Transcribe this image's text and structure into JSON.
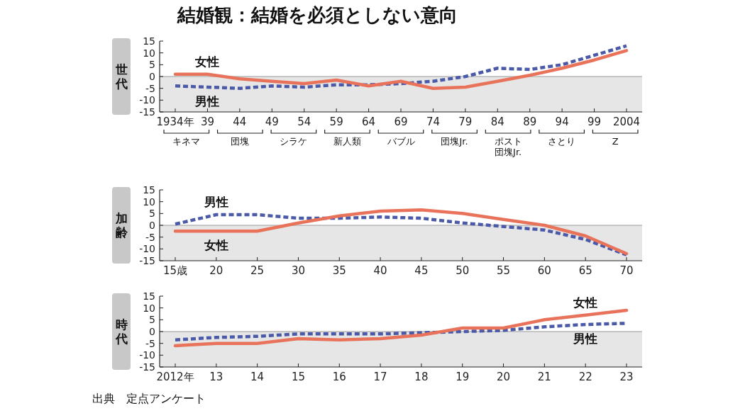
{
  "chart_data": [
    {
      "type": "line",
      "title": "結婚観：結婚を必須としない意向",
      "ylabel": "世代",
      "categories": [
        "1934年",
        "39",
        "44",
        "49",
        "54",
        "59",
        "64",
        "69",
        "74",
        "79",
        "84",
        "89",
        "94",
        "99",
        "2004"
      ],
      "ylim": [
        -15,
        15
      ],
      "yticks": [
        15,
        10,
        5,
        0,
        -5,
        -10,
        -15
      ],
      "legend": false,
      "series": [
        {
          "name": "男性",
          "color": "#4a5aa8",
          "line_style": "dashed",
          "values": [
            -4,
            -4.5,
            -5,
            -4,
            -4.5,
            -3.5,
            -3.5,
            -3,
            -2,
            0,
            3.5,
            3,
            5,
            9,
            13
          ]
        },
        {
          "name": "女性",
          "color": "#e8735a",
          "line_style": "solid",
          "values": [
            1,
            1,
            -1,
            -2,
            -3,
            -1.5,
            -4,
            -2,
            -5,
            -4.5,
            -2,
            0.5,
            3.5,
            7,
            11
          ]
        }
      ],
      "bands": [
        {
          "axis": "y",
          "from": -15,
          "to": 0,
          "color": "#e6e6e6"
        }
      ],
      "annotations": [
        "キネマ",
        "団塊",
        "シラケ",
        "新人類",
        "バブル",
        "団塊Jr.",
        "ポスト団塊Jr.",
        "さとり",
        "Z"
      ]
    },
    {
      "type": "line",
      "ylabel": "加齢",
      "categories": [
        "15歳",
        "20",
        "25",
        "30",
        "35",
        "40",
        "45",
        "50",
        "55",
        "60",
        "65",
        "70"
      ],
      "ylim": [
        -15,
        15
      ],
      "yticks": [
        15,
        10,
        5,
        0,
        -5,
        -10,
        -15
      ],
      "legend": false,
      "series": [
        {
          "name": "男性",
          "color": "#4a5aa8",
          "line_style": "dashed",
          "values": [
            0.5,
            4.5,
            4.5,
            3,
            3,
            3.5,
            3,
            1,
            -0.5,
            -2,
            -6,
            -12.5
          ]
        },
        {
          "name": "女性",
          "color": "#e8735a",
          "line_style": "solid",
          "values": [
            -2.5,
            -2.5,
            -2.5,
            1,
            4,
            6,
            6.5,
            5,
            2.5,
            0,
            -4.5,
            -12
          ]
        }
      ],
      "bands": [
        {
          "axis": "y",
          "from": -15,
          "to": 0,
          "color": "#e6e6e6"
        }
      ]
    },
    {
      "type": "line",
      "ylabel": "時代",
      "categories": [
        "2012年",
        "13",
        "14",
        "15",
        "16",
        "17",
        "18",
        "19",
        "20",
        "21",
        "22",
        "23"
      ],
      "ylim": [
        -15,
        15
      ],
      "yticks": [
        15,
        10,
        5,
        0,
        -5,
        -10,
        -15
      ],
      "legend": false,
      "series": [
        {
          "name": "男性",
          "color": "#4a5aa8",
          "line_style": "dashed",
          "values": [
            -3.5,
            -2.5,
            -2,
            -1,
            -1,
            -1,
            -0.5,
            0,
            0.5,
            2,
            3,
            3.5
          ]
        },
        {
          "name": "女性",
          "color": "#e8735a",
          "line_style": "solid",
          "values": [
            -6,
            -5,
            -5,
            -3,
            -3.5,
            -3,
            -1.5,
            1.5,
            1.5,
            5,
            7,
            9
          ]
        }
      ],
      "bands": [
        {
          "axis": "y",
          "from": -15,
          "to": 0,
          "color": "#e6e6e6"
        }
      ],
      "annotations": [
        "出典　定点アンケート"
      ]
    }
  ]
}
